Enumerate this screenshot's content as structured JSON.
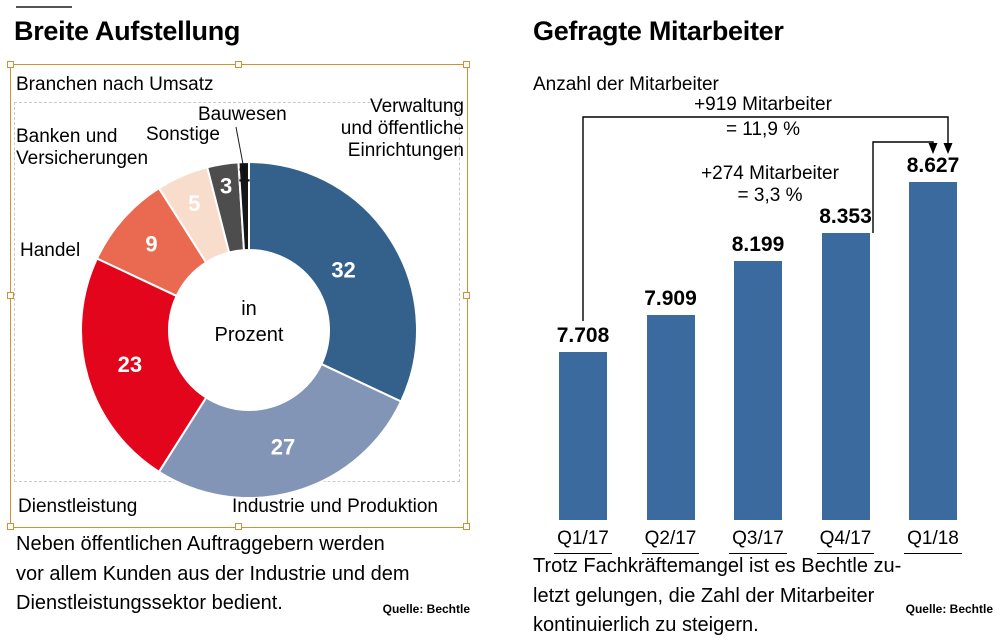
{
  "left": {
    "title": "Breite Aufstellung",
    "subtitle": "Branchen nach Umsatz",
    "center_label": "in\nProzent",
    "labels": {
      "verwaltung": "Verwaltung\nund öffentliche\nEinrichtungen",
      "bauwesen": "Bauwesen",
      "sonstige": "Sonstige",
      "banken": "Banken und\nVersicherungen",
      "handel": "Handel",
      "dienstleistung": "Dienstleistung",
      "industrie": "Industrie und Produktion"
    },
    "caption": "Neben öffentlichen Auftraggebern werden\nvor allem Kunden aus der Industrie und dem\nDienstleistungssektor bedient.",
    "source": "Quelle: Bechtle"
  },
  "right": {
    "title": "Gefragte Mitarbeiter",
    "subtitle": "Anzahl der Mitarbeiter",
    "caption": "Trotz Fachkräftemangel ist es Bechtle zu-\nletzt gelungen, die Zahl der Mitarbeiter\nkontinuierlich zu steigern.",
    "source": "Quelle: Bechtle"
  },
  "chart_data": [
    {
      "type": "pie",
      "subtype": "donut",
      "title": "Breite Aufstellung",
      "subtitle": "Branchen nach Umsatz",
      "unit": "Prozent",
      "center_label": "in Prozent",
      "labels": [
        "Verwaltung und öffentliche Einrichtungen",
        "Industrie und Produktion",
        "Dienstleistung",
        "Handel",
        "Banken und Versicherungen",
        "Sonstige",
        "Bauwesen"
      ],
      "values": [
        32,
        27,
        23,
        9,
        5,
        3,
        1
      ],
      "colors": [
        "#33618c",
        "#8295b7",
        "#e3051b",
        "#e96a50",
        "#f8dccc",
        "#4d4d4d",
        "#161616"
      ],
      "value_label_colors": [
        "#ffffff",
        "#ffffff",
        "#ffffff",
        "#ffffff",
        "#ffffff",
        "#ffffff",
        "#111111"
      ],
      "start_angle": "12-oclock",
      "direction": "clockwise"
    },
    {
      "type": "bar",
      "title": "Gefragte Mitarbeiter",
      "subtitle": "Anzahl der Mitarbeiter",
      "categories": [
        "Q1/17",
        "Q2/17",
        "Q3/17",
        "Q4/17",
        "Q1/18"
      ],
      "values": [
        7708,
        7909,
        8199,
        8353,
        8627
      ],
      "value_labels": [
        "7.708",
        "7.909",
        "8.199",
        "8.353",
        "8.627"
      ],
      "bar_color": "#3a6a9e",
      "ylim": [
        6800,
        8700
      ],
      "grid": false,
      "annotations": [
        {
          "text_line1": "+919 Mitarbeiter",
          "text_line2": "= 11,9 %",
          "from": "Q1/17",
          "to": "Q1/18"
        },
        {
          "text_line1": "+274 Mitarbeiter",
          "text_line2": "= 3,3 %",
          "from": "Q4/17",
          "to": "Q1/18"
        }
      ]
    }
  ],
  "selection_color": "#cf9233"
}
